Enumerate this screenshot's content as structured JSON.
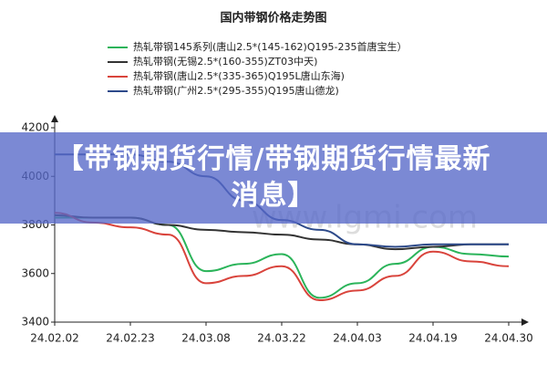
{
  "chart_data": {
    "type": "line",
    "title": "国内带钢价格走势图",
    "watermark": "www.lgmi.com",
    "categories": [
      "24.02.02",
      null,
      "24.02.23",
      null,
      "24.03.08",
      null,
      "24.03.22",
      null,
      "24.04.03",
      null,
      "24.04.19",
      null,
      "24.04.30"
    ],
    "series": [
      {
        "name": "热轧带钢145系列(唐山2.5*(145-162)Q195-235首唐宝生）",
        "color": "#2bb45a",
        "values": [
          3830,
          3830,
          3830,
          3800,
          3610,
          3640,
          3680,
          3500,
          3560,
          3640,
          3710,
          3680,
          3670
        ]
      },
      {
        "name": "热轧带钢(无锡2.5*(160-355)ZT03中天)",
        "color": "#333333",
        "values": [
          3840,
          3830,
          3830,
          3800,
          3780,
          3770,
          3760,
          3740,
          3720,
          3700,
          3710,
          3720,
          3720
        ]
      },
      {
        "name": "热轧带钢(唐山2.5*(335-365)Q195L唐山东海)",
        "color": "#d9443c",
        "values": [
          3850,
          3810,
          3790,
          3760,
          3560,
          3590,
          3630,
          3490,
          3530,
          3590,
          3690,
          3650,
          3630
        ]
      },
      {
        "name": "热轧带钢(广州2.5*(295-355)Q195唐山德龙)",
        "color": "#2d4a8a",
        "values": [
          4090,
          4090,
          4090,
          4060,
          4000,
          3900,
          3820,
          3780,
          3720,
          3710,
          3720,
          3720,
          3720
        ]
      }
    ],
    "ylim": [
      3400,
      4200
    ],
    "yticks": [
      3400,
      3600,
      3800,
      4000,
      4200
    ]
  },
  "banner": {
    "title": "【带钢期货行情/带钢期货行情最新消息】"
  }
}
